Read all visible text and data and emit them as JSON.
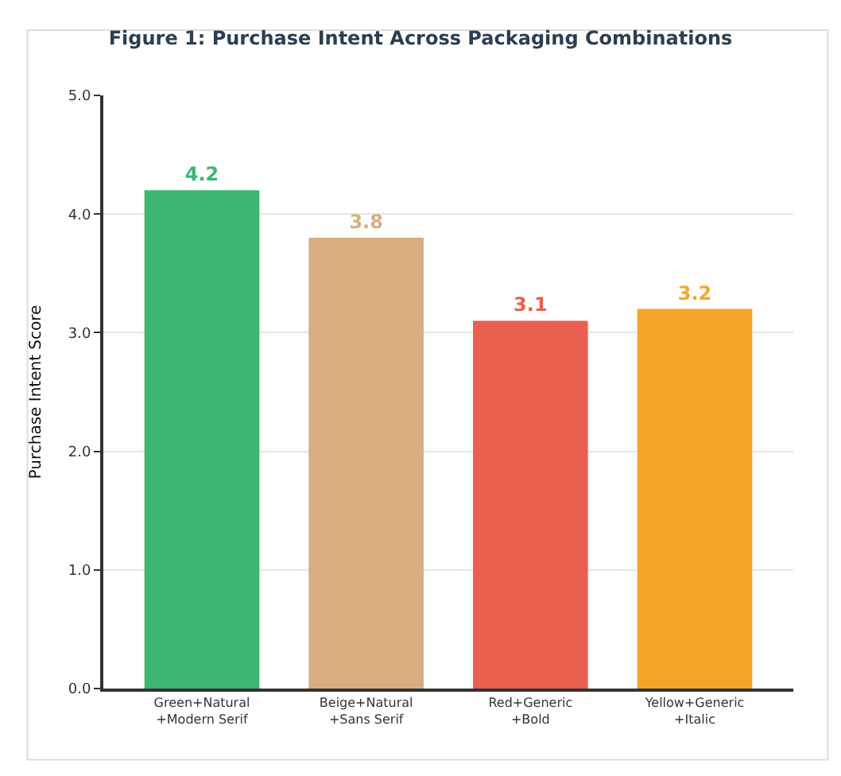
{
  "chart_data": {
    "type": "bar",
    "title": "Figure 1: Purchase Intent Across Packaging Combinations",
    "ylabel": "Purchase Intent Score",
    "categories": [
      "Green+Natural\n+Modern Serif",
      "Beige+Natural\n+Sans Serif",
      "Red+Generic\n+Bold",
      "Yellow+Generic\n+Italic"
    ],
    "values": [
      4.2,
      3.8,
      3.1,
      3.2
    ],
    "colors": [
      "#3cb670",
      "#d9ad80",
      "#e9604f",
      "#f4a62a"
    ],
    "data_labels": true,
    "ylim": [
      0,
      5
    ],
    "yticks": [
      {
        "value": 0,
        "label": "0.0"
      },
      {
        "value": 1,
        "label": "1.0"
      },
      {
        "value": 2,
        "label": "2.0"
      },
      {
        "value": 3,
        "label": "3.0"
      },
      {
        "value": 4,
        "label": "4.0"
      },
      {
        "value": 5,
        "label": "5.0"
      }
    ],
    "grid": "y"
  }
}
